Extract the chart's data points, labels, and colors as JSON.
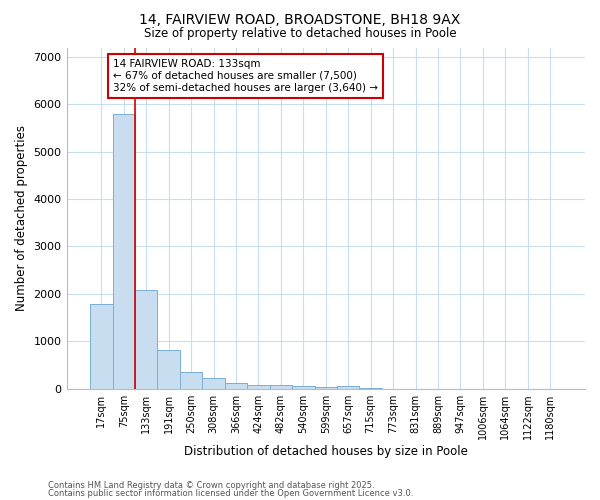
{
  "title1": "14, FAIRVIEW ROAD, BROADSTONE, BH18 9AX",
  "title2": "Size of property relative to detached houses in Poole",
  "xlabel": "Distribution of detached houses by size in Poole",
  "ylabel": "Number of detached properties",
  "categories": [
    "17sqm",
    "75sqm",
    "133sqm",
    "191sqm",
    "250sqm",
    "308sqm",
    "366sqm",
    "424sqm",
    "482sqm",
    "540sqm",
    "599sqm",
    "657sqm",
    "715sqm",
    "773sqm",
    "831sqm",
    "889sqm",
    "947sqm",
    "1006sqm",
    "1064sqm",
    "1122sqm",
    "1180sqm"
  ],
  "values": [
    1780,
    5800,
    2080,
    820,
    360,
    220,
    110,
    80,
    70,
    50,
    30,
    60,
    5,
    0,
    0,
    0,
    0,
    0,
    0,
    0,
    0
  ],
  "bar_color": "#c8ddf0",
  "bar_edge_color": "#7aafd4",
  "vline_color": "#cc0000",
  "vline_x": 1.5,
  "annotation_text": "14 FAIRVIEW ROAD: 133sqm\n← 67% of detached houses are smaller (7,500)\n32% of semi-detached houses are larger (3,640) →",
  "annotation_box_color": "#cc0000",
  "ylim": [
    0,
    7200
  ],
  "yticks": [
    0,
    1000,
    2000,
    3000,
    4000,
    5000,
    6000,
    7000
  ],
  "footer1": "Contains HM Land Registry data © Crown copyright and database right 2025.",
  "footer2": "Contains public sector information licensed under the Open Government Licence v3.0.",
  "bg_color": "#ffffff",
  "plot_bg_color": "#ffffff",
  "grid_color": "#c8ddf0"
}
